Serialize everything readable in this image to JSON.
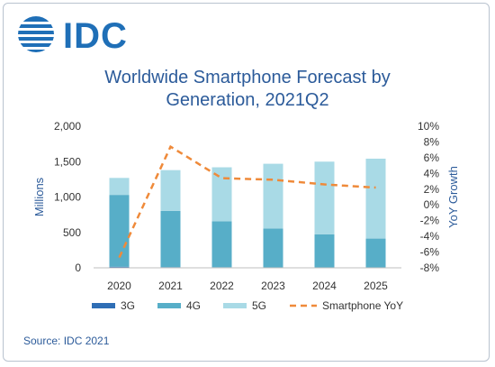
{
  "logo": {
    "text": "IDC"
  },
  "title_lines": [
    "Worldwide Smartphone Forecast by",
    "Generation, 2021Q2"
  ],
  "source": "Source: IDC 2021",
  "colors": {
    "g3": "#2f6eb5",
    "g4": "#57aec8",
    "g5": "#a9dae6",
    "yoy": "#ef8a3a",
    "axis_text": "#2c5b9a",
    "tick_text": "#333333"
  },
  "chart_data": {
    "type": "bar",
    "stacked": true,
    "categories": [
      "2020",
      "2021",
      "2022",
      "2023",
      "2024",
      "2025"
    ],
    "series": [
      {
        "name": "3G",
        "values": [
          15,
          10,
          8,
          6,
          4,
          3
        ]
      },
      {
        "name": "4G",
        "values": [
          1015,
          795,
          650,
          550,
          470,
          410
        ]
      },
      {
        "name": "5G",
        "values": [
          240,
          575,
          762,
          914,
          1026,
          1129
        ]
      }
    ],
    "line_series": {
      "name": "Smartphone YoY",
      "values": [
        -6.7,
        7.4,
        3.4,
        3.2,
        2.6,
        2.2
      ],
      "style": "dashed",
      "axis": "right"
    },
    "ylabel": "Millions",
    "y2label": "YoY Growth",
    "ylim": [
      0,
      2000
    ],
    "y_ticks": [
      "0",
      "500",
      "1,000",
      "1,500",
      "2,000"
    ],
    "y2lim": [
      -8,
      10
    ],
    "y2_ticks": [
      "-8%",
      "-6%",
      "-4%",
      "-2%",
      "0%",
      "2%",
      "4%",
      "6%",
      "8%",
      "10%"
    ],
    "legend": [
      "3G",
      "4G",
      "5G",
      "Smartphone YoY"
    ],
    "legend_position": "bottom",
    "grid": false
  }
}
